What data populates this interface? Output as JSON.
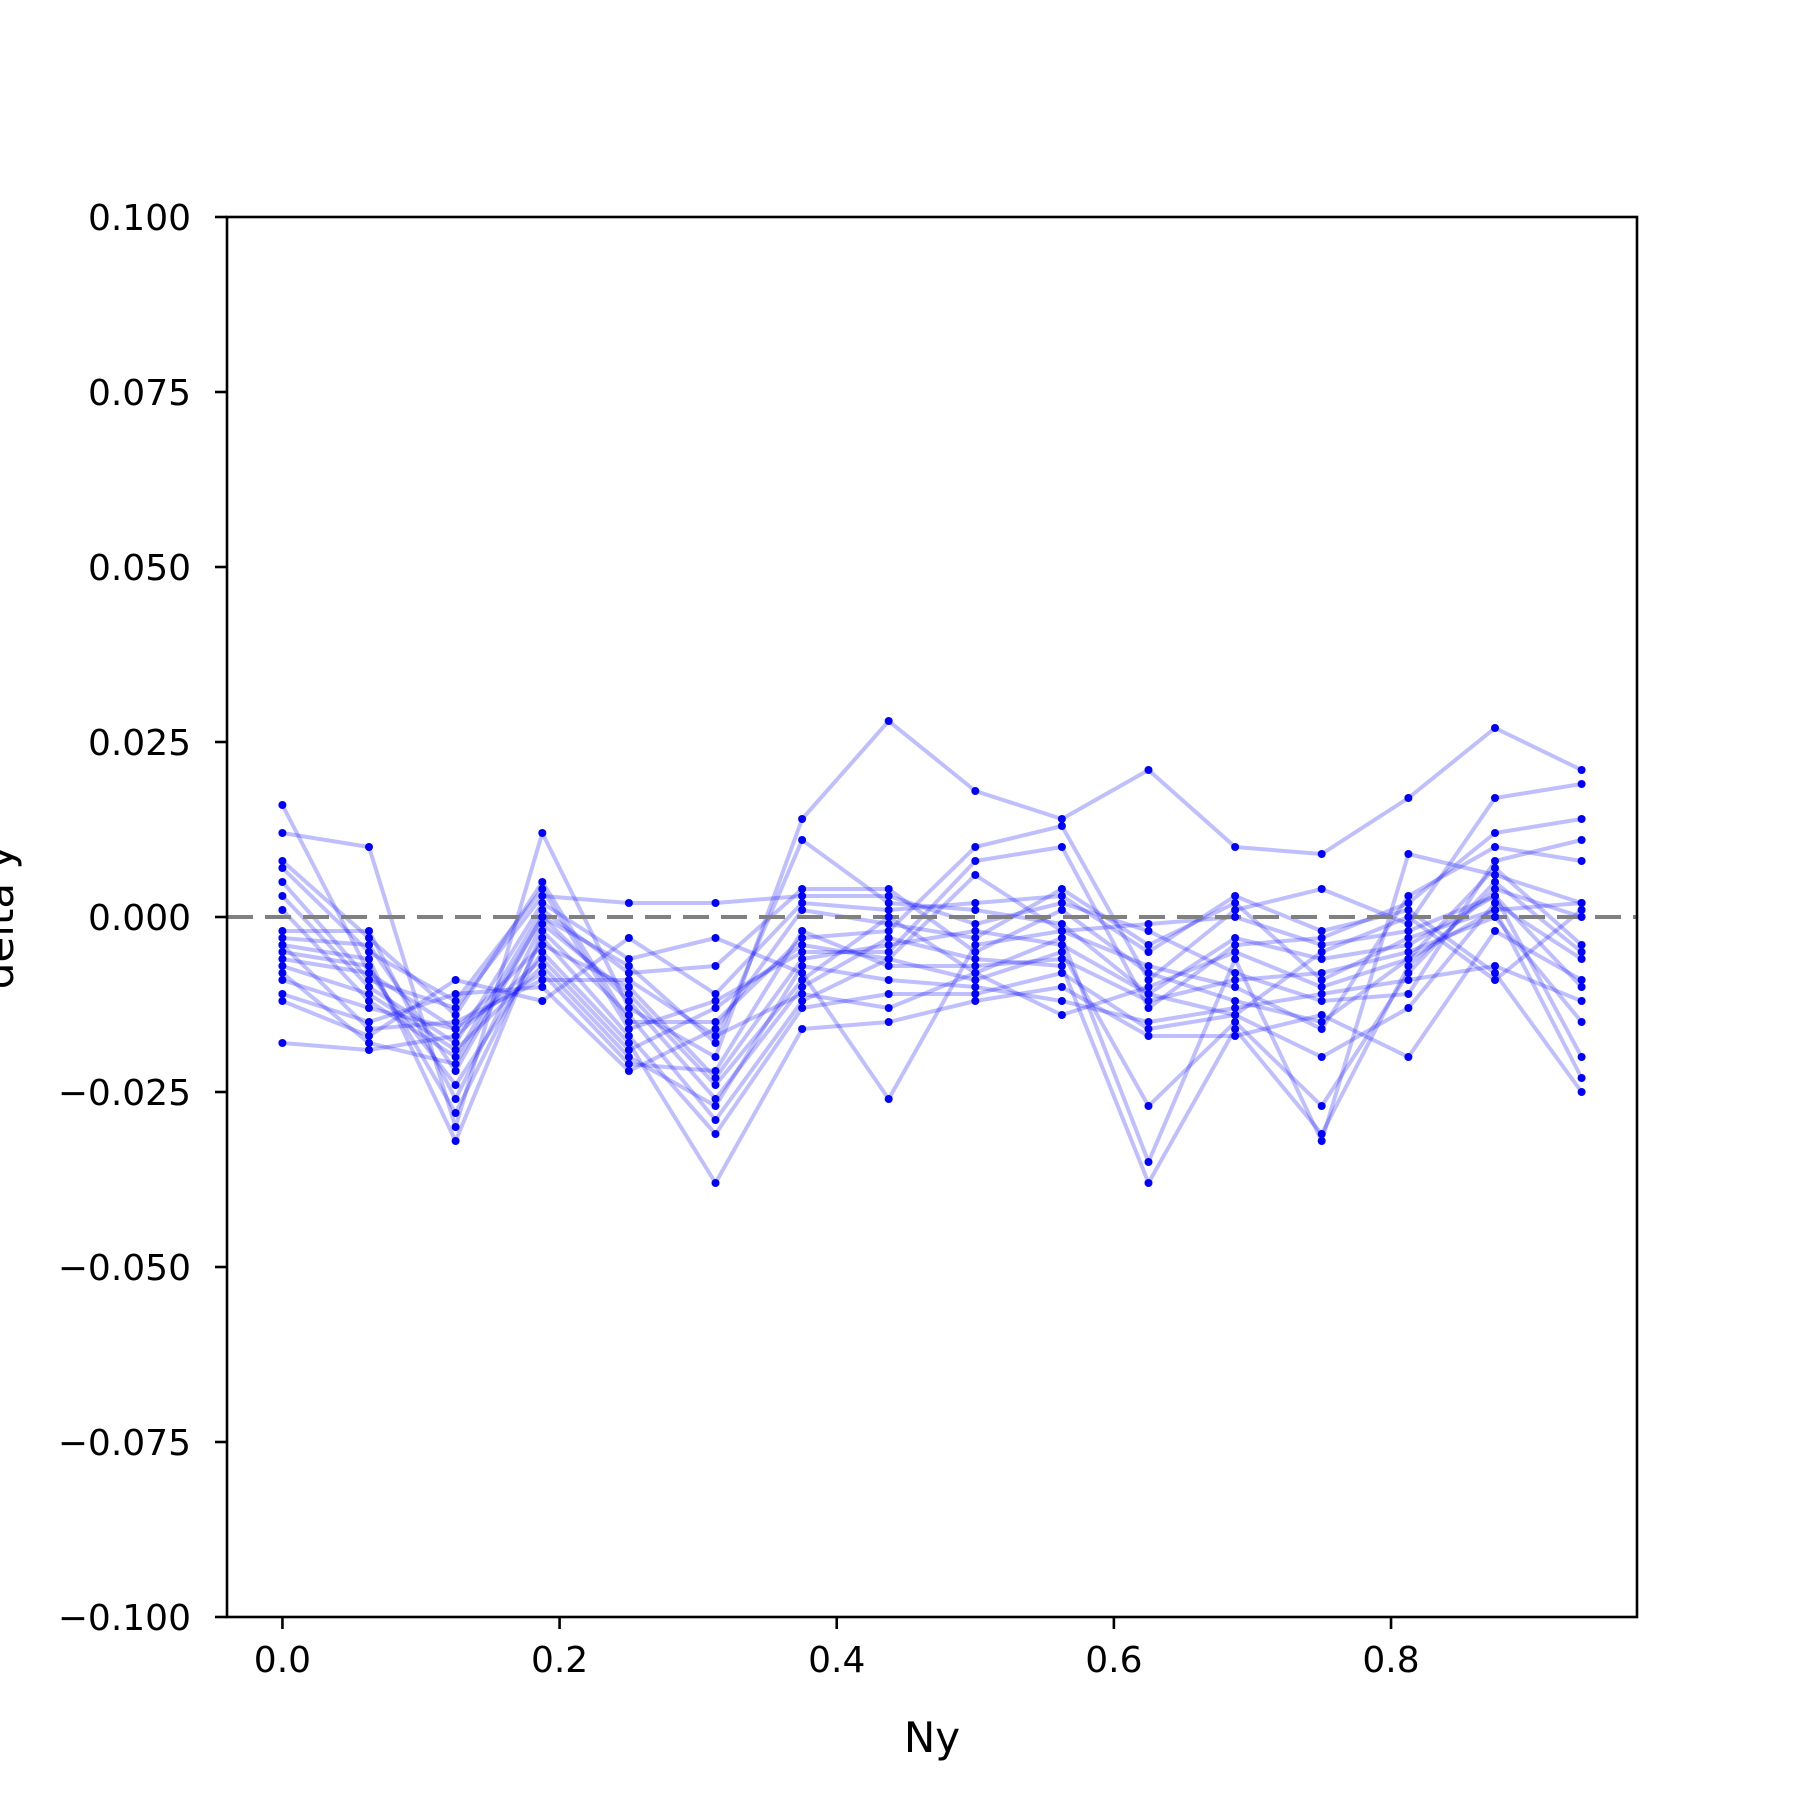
{
  "chart_data": {
    "type": "line",
    "title": "",
    "xlabel": "Ny",
    "ylabel": "delta y",
    "xlim": [
      -0.04,
      0.9775
    ],
    "ylim": [
      -0.1,
      0.1
    ],
    "xticks": [
      0.0,
      0.2,
      0.4,
      0.6,
      0.8
    ],
    "xtick_labels": [
      "0.0",
      "0.2",
      "0.4",
      "0.6",
      "0.8"
    ],
    "yticks": [
      -0.1,
      -0.075,
      -0.05,
      -0.025,
      0.0,
      0.025,
      0.05,
      0.075,
      0.1
    ],
    "ytick_labels": [
      "−0.100",
      "−0.075",
      "−0.050",
      "−0.025",
      "0.000",
      "0.025",
      "0.050",
      "0.075",
      "0.100"
    ],
    "grid": false,
    "reference_line": {
      "y": 0.0,
      "style": "dashed",
      "color": "#808080"
    },
    "line_color": "#0000ff",
    "line_opacity": 0.25,
    "marker_color": "#0000ff",
    "x": [
      0.0,
      0.0625,
      0.125,
      0.1875,
      0.25,
      0.3125,
      0.375,
      0.4375,
      0.5,
      0.5625,
      0.625,
      0.6875,
      0.75,
      0.8125,
      0.875,
      0.9375
    ],
    "series": [
      {
        "values": [
          0.016,
          -0.008,
          -0.016,
          -0.004,
          -0.01,
          -0.023,
          -0.006,
          -0.004,
          -0.002,
          -0.004,
          -0.011,
          -0.003,
          -0.006,
          -0.004,
          0.003,
          -0.01
        ]
      },
      {
        "values": [
          0.012,
          0.01,
          -0.03,
          0.012,
          -0.013,
          -0.02,
          0.014,
          0.028,
          0.018,
          0.014,
          0.021,
          0.01,
          0.009,
          0.017,
          0.027,
          0.021
        ]
      },
      {
        "values": [
          0.008,
          -0.003,
          -0.014,
          0.005,
          -0.015,
          -0.015,
          -0.003,
          -0.002,
          0.01,
          0.013,
          -0.009,
          0.001,
          0.004,
          -0.001,
          0.017,
          0.019
        ]
      },
      {
        "values": [
          0.007,
          -0.005,
          -0.012,
          0.004,
          -0.016,
          -0.012,
          -0.005,
          -0.005,
          0.008,
          0.01,
          -0.013,
          -0.004,
          -0.003,
          0.002,
          0.012,
          0.014
        ]
      },
      {
        "values": [
          0.005,
          -0.009,
          -0.013,
          0.003,
          0.002,
          0.002,
          0.003,
          0.003,
          -0.001,
          0.002,
          -0.002,
          -0.008,
          -0.012,
          -0.011,
          0.008,
          0.011
        ]
      },
      {
        "values": [
          0.003,
          -0.01,
          -0.018,
          0.002,
          -0.006,
          -0.003,
          -0.008,
          -0.026,
          -0.004,
          -0.002,
          -0.007,
          -0.01,
          -0.016,
          0.003,
          0.01,
          0.008
        ]
      },
      {
        "values": [
          0.001,
          -0.012,
          -0.02,
          0.001,
          -0.008,
          -0.007,
          0.004,
          0.004,
          -0.005,
          0.001,
          -0.008,
          -0.012,
          -0.015,
          -0.006,
          0.007,
          -0.004
        ]
      },
      {
        "values": [
          -0.002,
          -0.002,
          -0.026,
          -0.001,
          -0.011,
          -0.024,
          -0.009,
          0.0,
          -0.008,
          -0.003,
          -0.035,
          -0.006,
          -0.032,
          0.009,
          0.006,
          0.002
        ]
      },
      {
        "values": [
          -0.003,
          -0.004,
          -0.022,
          0.0,
          -0.012,
          -0.026,
          -0.01,
          -0.003,
          -0.006,
          -0.007,
          -0.038,
          -0.016,
          -0.031,
          -0.007,
          0.004,
          0.0
        ]
      },
      {
        "values": [
          -0.004,
          -0.006,
          -0.032,
          -0.002,
          -0.014,
          -0.029,
          -0.012,
          -0.006,
          -0.009,
          -0.005,
          -0.027,
          -0.015,
          -0.027,
          -0.008,
          0.005,
          -0.005
        ]
      },
      {
        "values": [
          -0.005,
          -0.007,
          -0.028,
          -0.003,
          -0.017,
          -0.031,
          -0.013,
          -0.011,
          -0.011,
          -0.008,
          -0.016,
          -0.014,
          -0.02,
          -0.013,
          0.002,
          -0.006
        ]
      },
      {
        "values": [
          -0.006,
          -0.008,
          -0.024,
          -0.005,
          -0.018,
          -0.038,
          -0.016,
          -0.015,
          -0.012,
          -0.01,
          -0.017,
          -0.017,
          -0.014,
          -0.02,
          -0.002,
          -0.009
        ]
      },
      {
        "values": [
          -0.007,
          -0.011,
          -0.019,
          -0.007,
          -0.02,
          -0.027,
          -0.007,
          -0.009,
          -0.01,
          -0.012,
          -0.015,
          -0.013,
          -0.011,
          -0.009,
          -0.007,
          -0.012
        ]
      },
      {
        "values": [
          -0.009,
          -0.013,
          -0.016,
          -0.008,
          -0.021,
          -0.022,
          -0.002,
          -0.007,
          -0.007,
          -0.006,
          -0.012,
          -0.009,
          -0.008,
          -0.005,
          0.0,
          -0.015
        ]
      },
      {
        "values": [
          -0.011,
          -0.015,
          -0.011,
          -0.01,
          -0.022,
          -0.016,
          0.001,
          -0.001,
          -0.003,
          0.004,
          -0.004,
          0.002,
          -0.009,
          -0.003,
          0.001,
          -0.023
        ]
      },
      {
        "values": [
          -0.012,
          -0.017,
          -0.009,
          -0.012,
          -0.003,
          -0.011,
          0.002,
          0.001,
          0.002,
          0.003,
          -0.005,
          0.003,
          -0.002,
          0.001,
          -0.008,
          -0.025
        ]
      },
      {
        "values": [
          -0.018,
          -0.019,
          -0.017,
          -0.006,
          -0.019,
          -0.013,
          -0.004,
          -0.006,
          0.006,
          -0.002,
          -0.001,
          0.0,
          -0.004,
          -0.002,
          0.003,
          -0.02
        ]
      },
      {
        "values": [
          -0.004,
          -0.016,
          -0.015,
          -0.009,
          -0.009,
          -0.017,
          -0.011,
          -0.013,
          -0.008,
          -0.014,
          -0.01,
          -0.005,
          -0.01,
          -0.006,
          0.001,
          0.002
        ]
      },
      {
        "values": [
          -0.008,
          -0.018,
          -0.021,
          0.0,
          -0.007,
          -0.018,
          0.011,
          0.002,
          0.001,
          -0.001,
          -0.011,
          -0.014,
          -0.005,
          0.0,
          -0.009,
          0.001
        ]
      }
    ]
  }
}
